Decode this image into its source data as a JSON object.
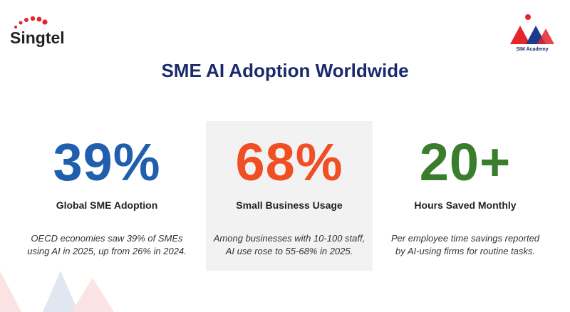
{
  "header": {
    "left_logo": "Singtel",
    "right_logo": "SIM Academy",
    "title": "SME AI Adoption Worldwide"
  },
  "stats": [
    {
      "value": "39%",
      "label": "Global SME Adoption",
      "description": [
        "OECD economies saw 39% of SMEs",
        "using AI in 2025, up from 26% in 2024."
      ]
    },
    {
      "value": "68%",
      "label": "Small Business Usage",
      "description": [
        "Among businesses with 10-100 staff,",
        "AI use rose to 55-68% in 2025."
      ]
    },
    {
      "value": "20+",
      "label": "Hours Saved Monthly",
      "description": [
        "Per employee time savings reported",
        "by AI-using firms for routine tasks."
      ]
    }
  ]
}
